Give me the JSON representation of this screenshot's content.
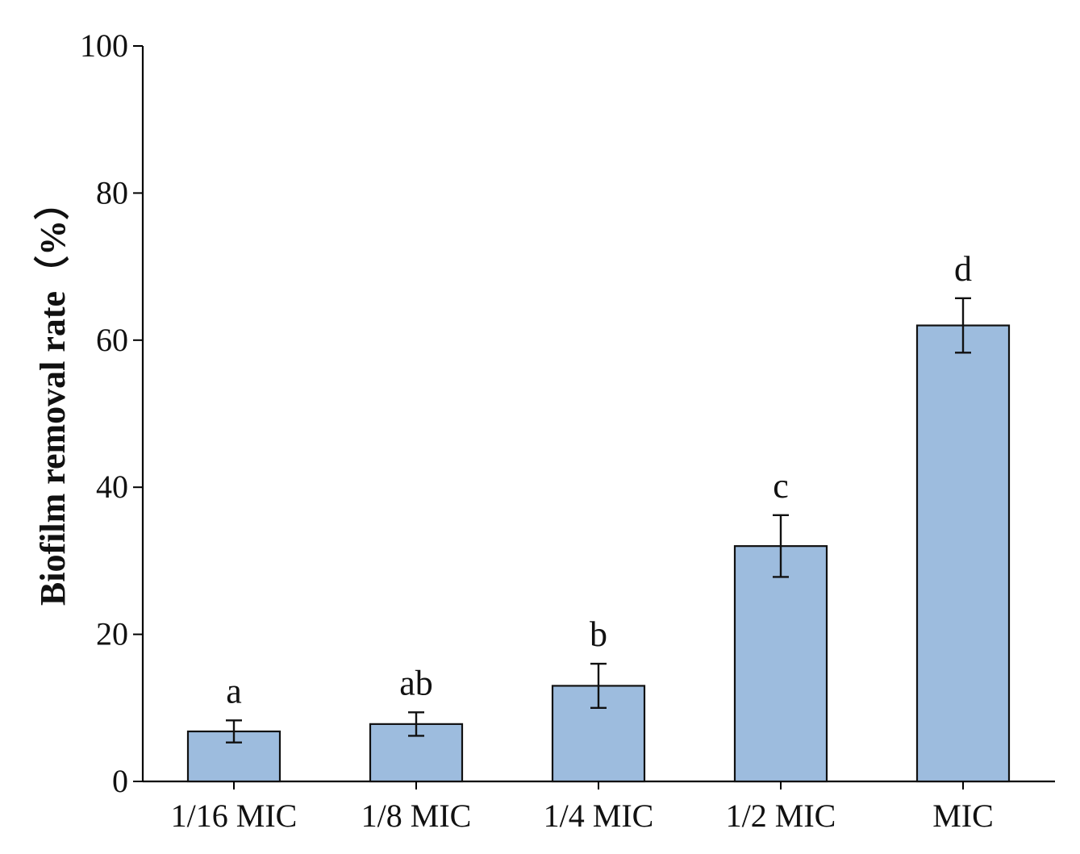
{
  "chart_data": {
    "type": "bar",
    "title": "",
    "xlabel": "",
    "ylabel": "Biofilm removal rate（%）",
    "ylim": [
      0,
      100
    ],
    "yticks": [
      0,
      20,
      40,
      60,
      80,
      100
    ],
    "grid": false,
    "categories": [
      "1/16 MIC",
      "1/8 MIC",
      "1/4 MIC",
      "1/2 MIC",
      "MIC"
    ],
    "values": [
      6.8,
      7.8,
      13,
      32,
      62
    ],
    "errors": [
      1.5,
      1.6,
      3,
      4.2,
      3.7
    ],
    "significance_labels": [
      "a",
      "ab",
      "b",
      "c",
      "d"
    ],
    "bar_color": "#9dbcde",
    "edge_color": "#111111"
  }
}
